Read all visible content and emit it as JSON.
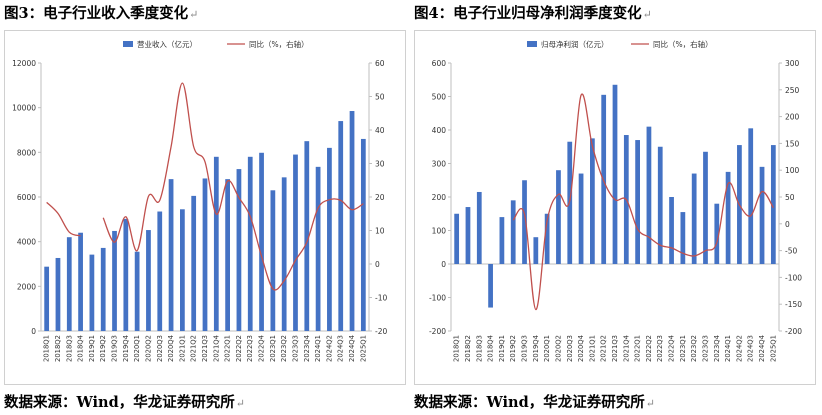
{
  "figures": [
    {
      "title": "图3：电子行业收入季度变化",
      "return_mark": "↵",
      "source": "数据来源：Wind，华龙证券研究所",
      "source_return_mark": "↵"
    },
    {
      "title": "图4：电子行业归母净利润季度变化",
      "return_mark": "↵",
      "source": "数据来源：Wind，华龙证券研究所",
      "source_return_mark": "↵"
    }
  ],
  "chart_data": [
    {
      "type": "bar",
      "title": "",
      "categories": [
        "2018Q1",
        "2018Q2",
        "2018Q3",
        "2018Q4",
        "2019Q1",
        "2019Q2",
        "2019Q3",
        "2019Q4",
        "2020Q1",
        "2020Q2",
        "2020Q3",
        "2020Q4",
        "2021Q1",
        "2021Q2",
        "2021Q3",
        "2021Q4",
        "2022Q1",
        "2022Q2",
        "2022Q3",
        "2022Q4",
        "2023Q1",
        "2023Q2",
        "2023Q3",
        "2023Q4",
        "2024Q1",
        "2024Q2",
        "2024Q3",
        "2024Q4",
        "2025Q1"
      ],
      "series": [
        {
          "name": "营业收入（亿元）",
          "axis": "left",
          "kind": "bar",
          "color": "#4472c4",
          "values": [
            2880,
            3270,
            4200,
            4400,
            3420,
            3720,
            4480,
            5020,
            3550,
            4520,
            5350,
            6800,
            5450,
            6050,
            6830,
            7800,
            6800,
            7250,
            7800,
            7980,
            6300,
            6880,
            7900,
            8500,
            7350,
            8200,
            9400,
            9850,
            8600
          ]
        },
        {
          "name": "同比（%，右轴）",
          "axis": "right",
          "kind": "line",
          "color": "#c0504d",
          "values": [
            18.4,
            15.1,
            9.5,
            8.4,
            null,
            13.8,
            6.5,
            14.1,
            4.0,
            20.2,
            19.0,
            35.0,
            54.0,
            35.0,
            30.5,
            14.9,
            24.8,
            19.8,
            14.2,
            2.3,
            -7.4,
            -5.0,
            1.1,
            6.5,
            16.7,
            19.2,
            19.0,
            16.2,
            18.0
          ]
        }
      ],
      "ylim": [
        0,
        12000
      ],
      "y_ticks": [
        "0",
        "2000",
        "4000",
        "6000",
        "8000",
        "10000",
        "12000"
      ],
      "y2lim": [
        -20,
        60
      ],
      "y2_ticks": [
        "-20",
        "-10",
        "0",
        "10",
        "20",
        "30",
        "40",
        "50",
        "60"
      ]
    },
    {
      "type": "bar",
      "title": "",
      "categories": [
        "2018Q1",
        "2018Q2",
        "2018Q3",
        "2018Q4",
        "2019Q1",
        "2019Q2",
        "2019Q3",
        "2019Q4",
        "2020Q1",
        "2020Q2",
        "2020Q3",
        "2020Q4",
        "2021Q1",
        "2021Q2",
        "2021Q3",
        "2021Q4",
        "2022Q1",
        "2022Q2",
        "2022Q3",
        "2022Q4",
        "2023Q1",
        "2023Q2",
        "2023Q3",
        "2023Q4",
        "2024Q1",
        "2024Q2",
        "2024Q3",
        "2024Q4",
        "2025Q1"
      ],
      "series": [
        {
          "name": "归母净利润（亿元）",
          "axis": "left",
          "kind": "bar",
          "color": "#4472c4",
          "values": [
            150,
            170,
            215,
            -130,
            140,
            190,
            250,
            80,
            150,
            280,
            365,
            270,
            375,
            505,
            535,
            385,
            370,
            410,
            350,
            200,
            155,
            270,
            335,
            180,
            275,
            355,
            405,
            290,
            355
          ]
        },
        {
          "name": "同比（%，右轴）",
          "axis": "right",
          "kind": "line",
          "color": "#c0504d",
          "values": [
            null,
            null,
            null,
            null,
            null,
            7.0,
            18.0,
            -160.0,
            6.0,
            55.0,
            43.0,
            240.0,
            145.0,
            80.0,
            45.0,
            45.0,
            -10.0,
            -25.0,
            -40.0,
            -45.0,
            -55.0,
            -60.0,
            -50.0,
            -35.0,
            75.0,
            35.0,
            15.0,
            60.0,
            30.0
          ]
        }
      ],
      "ylim": [
        -200,
        600
      ],
      "y_ticks": [
        "-200",
        "-100",
        "0",
        "100",
        "200",
        "300",
        "400",
        "500",
        "600"
      ],
      "y2lim": [
        -200,
        300
      ],
      "y2_ticks": [
        "-200",
        "-150",
        "-100",
        "-50",
        "0",
        "50",
        "100",
        "150",
        "200",
        "250",
        "300"
      ]
    }
  ]
}
